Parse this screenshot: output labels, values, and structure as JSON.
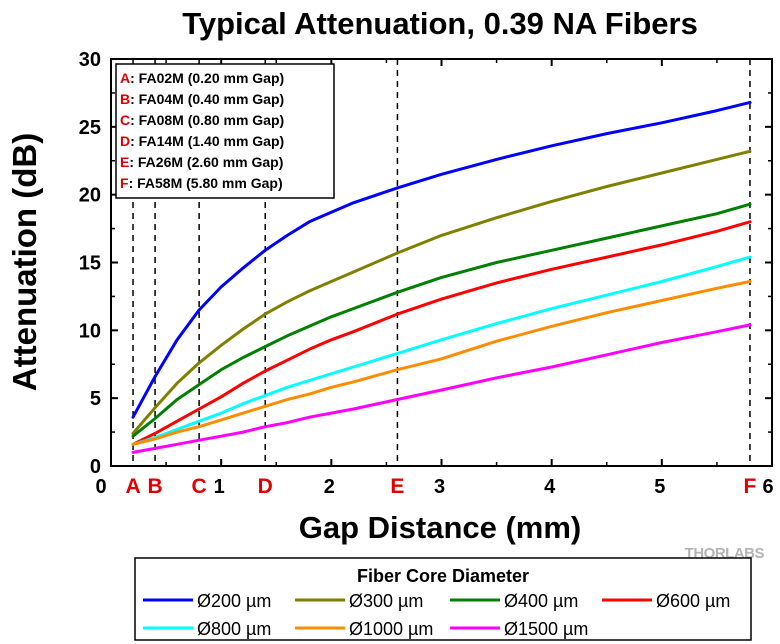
{
  "chart_data": {
    "type": "line",
    "title": "Typical Attenuation, 0.39 NA Fibers",
    "xlabel": "Gap Distance (mm)",
    "ylabel": "Attenuation (dB)",
    "xlim": [
      0,
      6
    ],
    "ylim": [
      0,
      30
    ],
    "x_ticks": [
      0,
      1,
      2,
      3,
      4,
      5,
      6
    ],
    "y_ticks": [
      0,
      5,
      10,
      15,
      20,
      25,
      30
    ],
    "grid": false,
    "legend": {
      "title": "Fiber Core Diameter",
      "placement": "bottom"
    },
    "markers": [
      {
        "letter": "A",
        "x": 0.2,
        "text": ": FA02M (0.20 mm Gap)"
      },
      {
        "letter": "B",
        "x": 0.4,
        "text": ": FA04M (0.40 mm Gap)"
      },
      {
        "letter": "C",
        "x": 0.8,
        "text": ": FA08M (0.80 mm Gap)"
      },
      {
        "letter": "D",
        "x": 1.4,
        "text": ": FA14M (1.40 mm Gap)"
      },
      {
        "letter": "E",
        "x": 2.6,
        "text": ": FA26M (2.60 mm Gap)"
      },
      {
        "letter": "F",
        "x": 5.8,
        "text": ": FA58M (5.80 mm Gap)"
      }
    ],
    "series": [
      {
        "name": "Ø200 µm",
        "color": "#0000ff",
        "x": [
          0.2,
          0.4,
          0.6,
          0.8,
          1.0,
          1.2,
          1.4,
          1.6,
          1.8,
          2.0,
          2.2,
          2.6,
          3.0,
          3.5,
          4.0,
          4.5,
          5.0,
          5.5,
          5.8
        ],
        "y": [
          3.6,
          6.6,
          9.3,
          11.5,
          13.2,
          14.6,
          15.9,
          17.0,
          18.0,
          18.7,
          19.4,
          20.5,
          21.5,
          22.6,
          23.6,
          24.5,
          25.3,
          26.2,
          26.8
        ]
      },
      {
        "name": "Ø300 µm",
        "color": "#808000",
        "x": [
          0.2,
          0.4,
          0.6,
          0.8,
          1.0,
          1.2,
          1.4,
          1.6,
          1.8,
          2.0,
          2.2,
          2.6,
          3.0,
          3.5,
          4.0,
          4.5,
          5.0,
          5.5,
          5.8
        ],
        "y": [
          2.4,
          4.3,
          6.1,
          7.6,
          8.9,
          10.1,
          11.2,
          12.1,
          12.9,
          13.6,
          14.3,
          15.7,
          17.0,
          18.3,
          19.5,
          20.6,
          21.6,
          22.6,
          23.2
        ]
      },
      {
        "name": "Ø400 µm",
        "color": "#008000",
        "x": [
          0.2,
          0.4,
          0.6,
          0.8,
          1.0,
          1.2,
          1.4,
          1.6,
          1.8,
          2.0,
          2.2,
          2.6,
          3.0,
          3.5,
          4.0,
          4.5,
          5.0,
          5.5,
          5.8
        ],
        "y": [
          2.2,
          3.5,
          4.9,
          6.0,
          7.1,
          8.0,
          8.8,
          9.6,
          10.3,
          11.0,
          11.6,
          12.8,
          13.9,
          15.0,
          15.9,
          16.8,
          17.7,
          18.6,
          19.3
        ]
      },
      {
        "name": "Ø600 µm",
        "color": "#ff0000",
        "x": [
          0.2,
          0.4,
          0.6,
          0.8,
          1.0,
          1.2,
          1.4,
          1.6,
          1.8,
          2.0,
          2.2,
          2.6,
          3.0,
          3.5,
          4.0,
          4.5,
          5.0,
          5.5,
          5.8
        ],
        "y": [
          1.6,
          2.4,
          3.3,
          4.2,
          5.1,
          6.1,
          7.0,
          7.8,
          8.6,
          9.3,
          9.9,
          11.2,
          12.3,
          13.5,
          14.5,
          15.4,
          16.3,
          17.3,
          18.0
        ]
      },
      {
        "name": "Ø800 µm",
        "color": "#00ffff",
        "x": [
          0.2,
          0.4,
          0.6,
          0.8,
          1.0,
          1.2,
          1.4,
          1.6,
          1.8,
          2.0,
          2.2,
          2.6,
          3.0,
          3.5,
          4.0,
          4.5,
          5.0,
          5.5,
          5.8
        ],
        "y": [
          1.6,
          2.1,
          2.7,
          3.3,
          3.9,
          4.6,
          5.2,
          5.8,
          6.3,
          6.8,
          7.3,
          8.3,
          9.3,
          10.5,
          11.6,
          12.6,
          13.6,
          14.7,
          15.4
        ]
      },
      {
        "name": "Ø1000 µm",
        "color": "#ff8c00",
        "x": [
          0.2,
          0.4,
          0.6,
          0.8,
          1.0,
          1.2,
          1.4,
          1.6,
          1.8,
          2.0,
          2.2,
          2.6,
          3.0,
          3.5,
          4.0,
          4.5,
          5.0,
          5.5,
          5.8
        ],
        "y": [
          1.6,
          2.0,
          2.5,
          2.9,
          3.4,
          3.9,
          4.4,
          4.9,
          5.3,
          5.8,
          6.2,
          7.1,
          7.9,
          9.2,
          10.3,
          11.3,
          12.2,
          13.1,
          13.6
        ]
      },
      {
        "name": "Ø1500 µm",
        "color": "#ff00ff",
        "x": [
          0.2,
          0.4,
          0.6,
          0.8,
          1.0,
          1.2,
          1.4,
          1.6,
          1.8,
          2.0,
          2.2,
          2.6,
          3.0,
          3.5,
          4.0,
          4.5,
          5.0,
          5.5,
          5.8
        ],
        "y": [
          1.0,
          1.3,
          1.6,
          1.9,
          2.2,
          2.5,
          2.9,
          3.2,
          3.6,
          3.9,
          4.2,
          4.9,
          5.6,
          6.5,
          7.3,
          8.2,
          9.1,
          9.9,
          10.4
        ]
      }
    ]
  },
  "brand": {
    "logo_text": "THORLABS"
  }
}
